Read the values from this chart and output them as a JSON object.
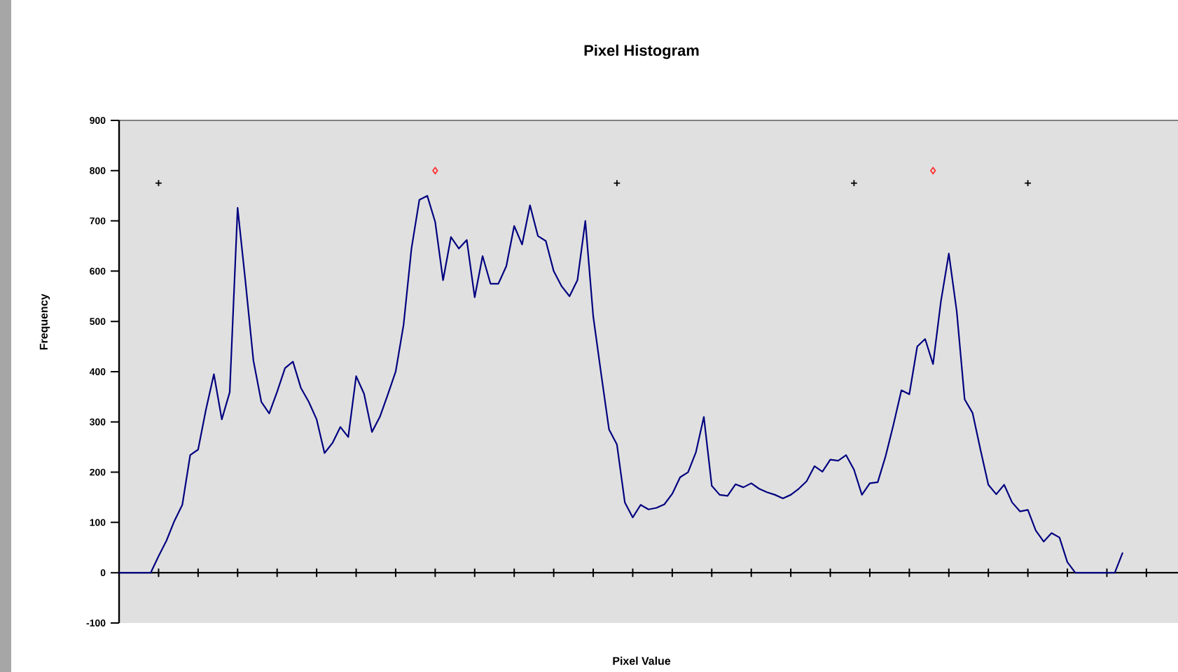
{
  "chart_data": {
    "type": "line",
    "title": "Pixel Histogram",
    "xlabel": "Pixel Value",
    "ylabel": "Frequency",
    "categories": [
      null,
      null,
      null,
      null,
      null,
      null,
      null,
      null,
      null,
      null,
      null,
      null,
      null,
      null,
      null,
      null,
      null,
      null,
      null,
      null,
      null,
      null,
      null,
      null,
      null,
      null,
      null,
      null,
      null,
      null,
      null,
      null,
      null,
      null,
      null,
      null,
      null,
      null,
      null,
      null,
      null,
      null,
      null,
      null,
      null,
      null,
      null,
      null,
      null,
      null,
      null,
      null,
      null,
      null,
      null,
      null,
      null,
      null,
      null,
      null,
      null,
      null,
      null,
      null,
      null,
      null,
      null,
      null,
      null,
      null,
      null,
      null,
      null,
      null,
      null,
      null,
      null,
      null,
      null,
      null,
      null,
      null,
      null,
      null,
      null,
      null,
      null,
      null,
      null,
      null,
      null,
      null,
      null,
      null,
      null,
      null,
      null,
      null,
      null,
      null,
      null,
      null,
      null,
      null,
      null,
      null,
      null,
      null,
      null,
      null,
      null,
      null,
      null,
      null,
      null,
      null,
      null,
      null,
      null,
      null,
      null,
      null,
      null,
      null,
      null,
      null,
      null,
      null
    ],
    "ylim": [
      -100,
      900
    ],
    "yticks": [
      -100,
      0,
      100,
      200,
      300,
      400,
      500,
      600,
      700,
      800,
      900
    ],
    "tick_labels": "y",
    "series": [
      {
        "color": "#000080",
        "values": [
          0,
          0,
          0,
          0,
          0,
          33,
          64,
          103,
          135,
          234,
          245,
          325,
          395,
          305,
          359,
          726,
          578,
          422,
          340,
          317,
          360,
          407,
          420,
          368,
          340,
          305,
          238,
          258,
          290,
          270,
          391,
          356,
          280,
          310,
          354,
          400,
          493,
          645,
          742,
          750,
          698,
          582,
          668,
          645,
          662,
          548,
          630,
          575,
          575,
          610,
          690,
          653,
          731,
          670,
          660,
          600,
          570,
          550,
          582,
          700,
          510,
          396,
          285,
          255,
          140,
          110,
          135,
          126,
          129,
          136,
          157,
          190,
          200,
          240,
          310,
          173,
          155,
          153,
          176,
          170,
          178,
          167,
          160,
          155,
          148,
          155,
          167,
          182,
          212,
          201,
          225,
          223,
          234,
          205,
          155,
          178,
          180,
          232,
          295,
          363,
          355,
          450,
          465,
          415,
          540,
          635,
          520,
          345,
          318,
          245,
          175,
          156,
          175,
          140,
          122,
          125,
          84,
          62,
          79,
          70,
          21,
          0,
          0,
          0,
          0,
          0,
          0,
          40
        ]
      },
      {
        "type": "scatter",
        "color": "#000000",
        "marker": "cross",
        "values": [
          null,
          null,
          null,
          null,
          null,
          775,
          null,
          null,
          null,
          null,
          null,
          null,
          null,
          null,
          null,
          null,
          null,
          null,
          null,
          null,
          null,
          null,
          null,
          null,
          null,
          null,
          null,
          null,
          null,
          null,
          null,
          null,
          null,
          null,
          null,
          null,
          null,
          null,
          null,
          null,
          null,
          null,
          null,
          null,
          null,
          null,
          null,
          null,
          null,
          null,
          null,
          null,
          null,
          null,
          null,
          null,
          null,
          null,
          null,
          null,
          null,
          null,
          null,
          775,
          null,
          null,
          null,
          null,
          null,
          null,
          null,
          null,
          null,
          null,
          null,
          null,
          null,
          null,
          null,
          null,
          null,
          null,
          null,
          null,
          null,
          null,
          null,
          null,
          null,
          null,
          null,
          null,
          null,
          775,
          null,
          null,
          null,
          null,
          null,
          null,
          null,
          null,
          null,
          null,
          null,
          null,
          null,
          null,
          null,
          null,
          null,
          null,
          null,
          null,
          null,
          775,
          null,
          null,
          null,
          null,
          null,
          null,
          null,
          null,
          null,
          null,
          null,
          null
        ]
      },
      {
        "type": "scatter",
        "color": "#ff3333",
        "marker": "diamond",
        "values": [
          null,
          null,
          null,
          null,
          null,
          null,
          null,
          null,
          null,
          null,
          null,
          null,
          null,
          null,
          null,
          null,
          null,
          null,
          null,
          null,
          null,
          null,
          null,
          null,
          null,
          null,
          null,
          null,
          null,
          null,
          null,
          null,
          null,
          null,
          null,
          null,
          null,
          null,
          null,
          null,
          800,
          null,
          null,
          null,
          null,
          null,
          null,
          null,
          null,
          null,
          null,
          null,
          null,
          null,
          null,
          null,
          null,
          null,
          null,
          null,
          null,
          null,
          null,
          null,
          null,
          null,
          null,
          null,
          null,
          null,
          null,
          null,
          null,
          null,
          null,
          null,
          null,
          null,
          null,
          null,
          null,
          null,
          null,
          null,
          null,
          null,
          null,
          null,
          null,
          null,
          null,
          null,
          null,
          null,
          null,
          null,
          null,
          null,
          null,
          null,
          null,
          null,
          null,
          800,
          null,
          null,
          null,
          null,
          null,
          null,
          null,
          null,
          null,
          null,
          null,
          null,
          null,
          null,
          null,
          null,
          null,
          null,
          null,
          null,
          null,
          null,
          null,
          null
        ]
      }
    ]
  }
}
